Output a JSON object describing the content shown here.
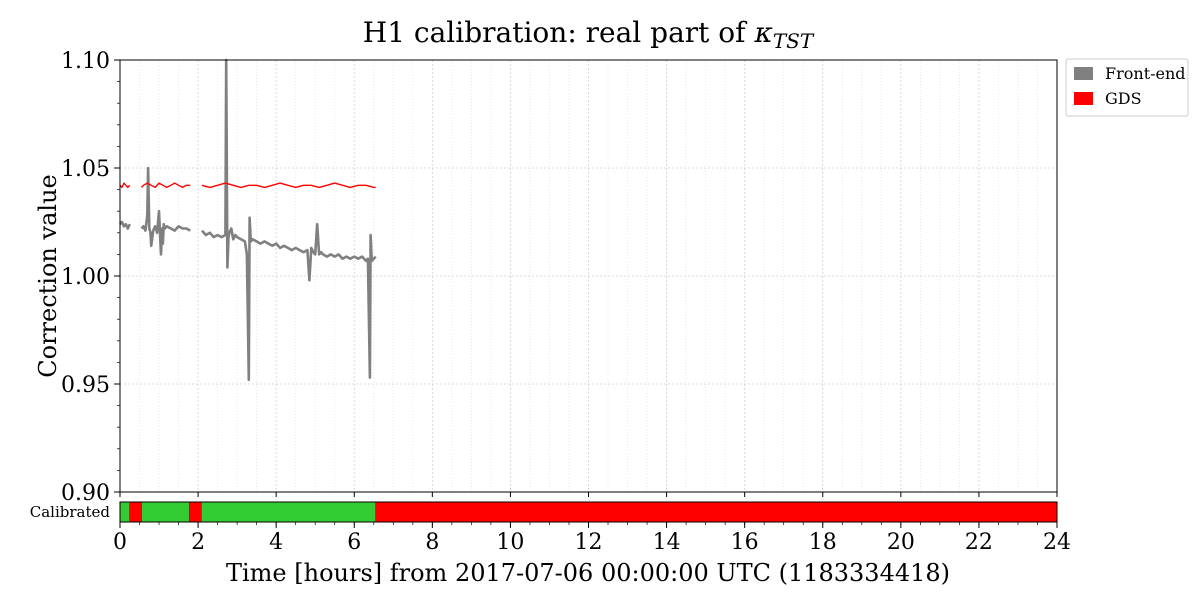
{
  "chart_data": {
    "type": "line",
    "title": "H1 calibration: real part of κTST",
    "title_main": "H1 calibration: real part of ",
    "title_kappa": "κ",
    "title_sub": "TST",
    "xlabel": "Time [hours] from 2017-07-06 00:00:00 UTC (1183334418)",
    "ylabel": "Correction value",
    "xlim": [
      0,
      24
    ],
    "ylim": [
      0.9,
      1.1
    ],
    "xticks": [
      0,
      2,
      4,
      6,
      8,
      10,
      12,
      14,
      16,
      18,
      20,
      22,
      24
    ],
    "xtick_labels": [
      "0",
      "2",
      "4",
      "6",
      "8",
      "10",
      "12",
      "14",
      "16",
      "18",
      "20",
      "22",
      "24"
    ],
    "yticks": [
      0.9,
      0.95,
      1.0,
      1.05,
      1.1
    ],
    "ytick_labels": [
      "0.90",
      "0.95",
      "1.00",
      "1.05",
      "1.10"
    ],
    "grid": true,
    "legend_placement": "outside-top-right",
    "series": [
      {
        "name": "Front-end",
        "color": "#808080",
        "segments": [
          {
            "x": [
              0.0,
              0.05,
              0.1,
              0.15,
              0.2,
              0.25
            ],
            "y": [
              1.024,
              1.025,
              1.023,
              1.024,
              1.022,
              1.024
            ]
          },
          {
            "x": [
              0.55,
              0.6,
              0.65,
              0.7,
              0.72,
              0.75,
              0.78,
              0.8,
              0.85,
              0.9,
              0.95,
              1.0,
              1.05,
              1.08,
              1.1,
              1.12,
              1.15,
              1.2,
              1.3,
              1.4,
              1.5,
              1.6,
              1.7,
              1.8
            ],
            "y": [
              1.022,
              1.023,
              1.021,
              1.028,
              1.05,
              1.022,
              1.02,
              1.014,
              1.021,
              1.023,
              1.02,
              1.03,
              1.01,
              1.022,
              1.015,
              1.024,
              1.022,
              1.023,
              1.022,
              1.021,
              1.023,
              1.022,
              1.022,
              1.021
            ]
          },
          {
            "x": [
              2.1,
              2.2,
              2.3,
              2.4,
              2.5,
              2.6,
              2.7,
              2.72,
              2.75,
              2.78,
              2.8,
              2.85,
              2.9,
              2.95,
              3.0,
              3.1,
              3.2,
              3.25,
              3.3,
              3.32,
              3.35,
              3.4,
              3.5,
              3.6,
              3.7,
              3.8,
              3.9,
              4.0,
              4.1,
              4.2,
              4.3,
              4.4,
              4.5,
              4.6,
              4.7,
              4.8,
              4.85,
              4.9,
              4.95,
              5.0,
              5.05,
              5.1,
              5.15,
              5.2,
              5.3,
              5.4,
              5.5,
              5.6,
              5.7,
              5.8,
              5.9,
              6.0,
              6.1,
              6.2,
              6.3,
              6.35,
              6.4,
              6.42,
              6.45,
              6.5,
              6.55
            ],
            "y": [
              1.021,
              1.019,
              1.02,
              1.018,
              1.019,
              1.018,
              1.019,
              1.1,
              1.004,
              1.018,
              1.02,
              1.022,
              1.017,
              1.019,
              1.018,
              1.017,
              1.016,
              1.01,
              0.952,
              1.027,
              1.016,
              1.017,
              1.016,
              1.015,
              1.016,
              1.015,
              1.014,
              1.015,
              1.013,
              1.014,
              1.013,
              1.012,
              1.013,
              1.012,
              1.011,
              1.012,
              0.998,
              1.013,
              1.011,
              1.01,
              1.024,
              1.01,
              1.011,
              1.01,
              1.009,
              1.01,
              1.009,
              1.01,
              1.008,
              1.009,
              1.008,
              1.009,
              1.008,
              1.009,
              1.007,
              1.008,
              0.953,
              1.019,
              1.007,
              1.008,
              1.009
            ]
          }
        ]
      },
      {
        "name": "GDS",
        "color": "#ff0000",
        "segments": [
          {
            "x": [
              0.0,
              0.05,
              0.1,
              0.15,
              0.2,
              0.25
            ],
            "y": [
              1.042,
              1.041,
              1.043,
              1.042,
              1.041,
              1.042
            ]
          },
          {
            "x": [
              0.55,
              0.6,
              0.7,
              0.8,
              0.9,
              1.0,
              1.1,
              1.2,
              1.3,
              1.4,
              1.5,
              1.6,
              1.7,
              1.8
            ],
            "y": [
              1.041,
              1.042,
              1.043,
              1.042,
              1.041,
              1.043,
              1.042,
              1.041,
              1.042,
              1.043,
              1.042,
              1.041,
              1.042,
              1.042
            ]
          },
          {
            "x": [
              2.1,
              2.3,
              2.5,
              2.7,
              2.9,
              3.1,
              3.3,
              3.5,
              3.7,
              3.9,
              4.1,
              4.3,
              4.5,
              4.7,
              4.9,
              5.1,
              5.3,
              5.5,
              5.7,
              5.9,
              6.1,
              6.3,
              6.5,
              6.55
            ],
            "y": [
              1.042,
              1.041,
              1.042,
              1.043,
              1.042,
              1.041,
              1.042,
              1.042,
              1.041,
              1.042,
              1.043,
              1.042,
              1.041,
              1.042,
              1.042,
              1.041,
              1.042,
              1.043,
              1.042,
              1.041,
              1.042,
              1.042,
              1.041,
              1.041
            ]
          }
        ]
      }
    ],
    "calibrated_bar": {
      "label": "Calibrated",
      "ok_color": "#33cc33",
      "bad_color": "#ff0000",
      "segments": [
        {
          "start": 0.0,
          "end": 0.25,
          "state": "ok"
        },
        {
          "start": 0.25,
          "end": 0.55,
          "state": "bad"
        },
        {
          "start": 0.55,
          "end": 1.78,
          "state": "ok"
        },
        {
          "start": 1.78,
          "end": 2.08,
          "state": "bad"
        },
        {
          "start": 2.08,
          "end": 6.55,
          "state": "ok"
        },
        {
          "start": 6.55,
          "end": 24.0,
          "state": "bad"
        }
      ]
    }
  }
}
